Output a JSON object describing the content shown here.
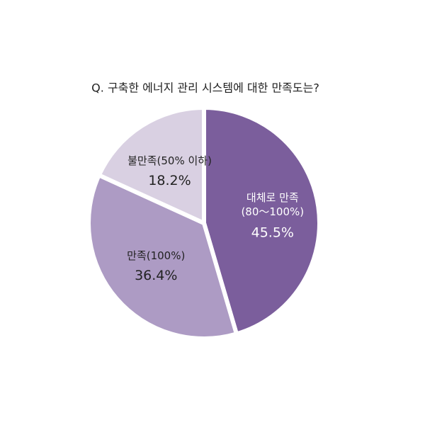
{
  "chart_data": {
    "type": "pie",
    "title": "Q. 구축한 에너지 관리 시스템에 대한 만족도는?",
    "categories": [
      "대체로 만족\n(80～100%)",
      "만족(100%)",
      "불만족(50% 이하)"
    ],
    "values": [
      45.5,
      36.4,
      18.2
    ],
    "value_labels": [
      "45.5%",
      "36.4%",
      "18.2%"
    ],
    "colors": [
      "#7b5e9c",
      "#ad9bc4",
      "#d9d0e2"
    ]
  }
}
